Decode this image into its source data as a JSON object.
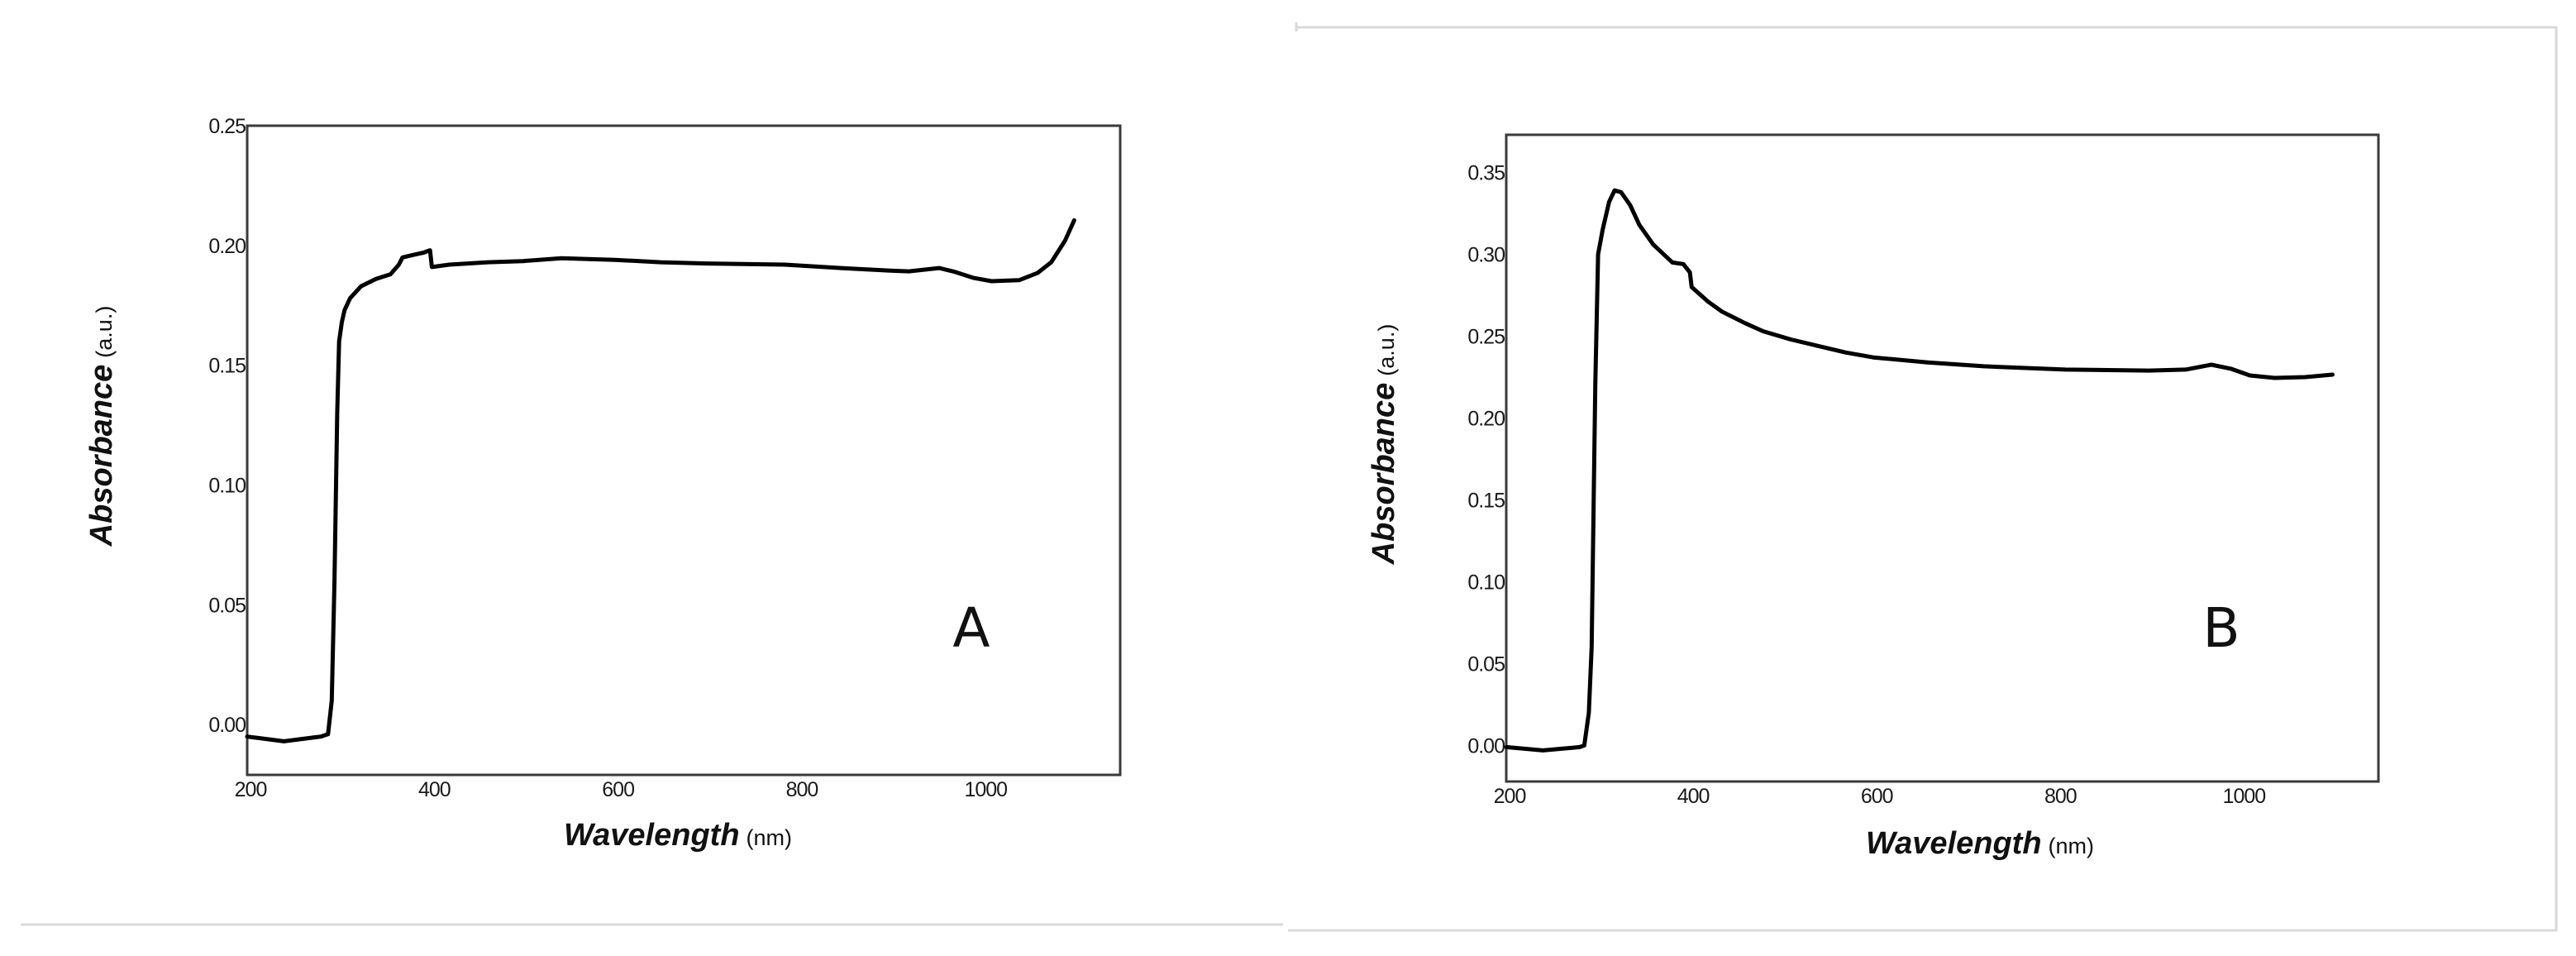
{
  "figure": {
    "panel_border_color": "#d9d9d9",
    "line_color": "#000000"
  },
  "chart_data": [
    {
      "type": "line",
      "panel_label": "A",
      "title": "",
      "xlabel": "Wavelength",
      "xlabel_unit": "(nm)",
      "ylabel": "Absorbance",
      "ylabel_unit": "(a.u.)",
      "xlim": [
        200,
        1150
      ],
      "ylim": [
        -0.021,
        0.25
      ],
      "xticks": [
        200,
        400,
        600,
        800,
        1000
      ],
      "xtick_labels": [
        "200",
        "400",
        "600",
        "800",
        "1000"
      ],
      "yticks": [
        0.0,
        0.05,
        0.1,
        0.15,
        0.2,
        0.25
      ],
      "ytick_labels": [
        "0.00",
        "0.05",
        "0.10",
        "0.15",
        "0.20",
        "0.25"
      ],
      "grid": false,
      "legend": null,
      "series": [
        {
          "name": "A",
          "x": [
            200,
            220,
            240,
            260,
            280,
            288,
            292,
            295,
            298,
            300,
            303,
            306,
            312,
            324,
            340,
            356,
            365,
            369,
            380,
            392,
            399,
            401,
            420,
            462,
            500,
            542,
            600,
            650,
            700,
            785,
            850,
            900,
            920,
            953,
            970,
            990,
            1010,
            1040,
            1060,
            1075,
            1090,
            1100
          ],
          "y": [
            -0.005,
            -0.006,
            -0.007,
            -0.006,
            -0.005,
            -0.004,
            0.01,
            0.06,
            0.13,
            0.16,
            0.168,
            0.173,
            0.178,
            0.183,
            0.186,
            0.188,
            0.192,
            0.195,
            0.196,
            0.197,
            0.198,
            0.191,
            0.192,
            0.193,
            0.1935,
            0.1947,
            0.194,
            0.193,
            0.1925,
            0.192,
            0.1905,
            0.1895,
            0.1892,
            0.1906,
            0.189,
            0.1865,
            0.1851,
            0.1855,
            0.1885,
            0.193,
            0.202,
            0.2105
          ]
        }
      ]
    },
    {
      "type": "line",
      "panel_label": "B",
      "title": "",
      "xlabel": "Wavelength",
      "xlabel_unit": "(nm)",
      "ylabel": "Absorbance",
      "ylabel_unit": "(a.u.)",
      "xlim": [
        200,
        1150
      ],
      "ylim": [
        -0.022,
        0.373
      ],
      "xticks": [
        200,
        400,
        600,
        800,
        1000
      ],
      "xtick_labels": [
        "200",
        "400",
        "600",
        "800",
        "1000"
      ],
      "yticks": [
        0.0,
        0.05,
        0.1,
        0.15,
        0.2,
        0.25,
        0.3,
        0.35
      ],
      "ytick_labels": [
        "0.00",
        "0.05",
        "0.10",
        "0.15",
        "0.20",
        "0.25",
        "0.30",
        "0.35"
      ],
      "grid": false,
      "legend": null,
      "series": [
        {
          "name": "B",
          "x": [
            200,
            220,
            240,
            260,
            280,
            285,
            290,
            293,
            295,
            297,
            300,
            305,
            312,
            318,
            325,
            335,
            345,
            360,
            381,
            393,
            400,
            402,
            420,
            435,
            460,
            480,
            510,
            540,
            570,
            600,
            659,
            720,
            809,
            900,
            940,
            968,
            990,
            1010,
            1037,
            1070,
            1100
          ],
          "y": [
            -0.001,
            -0.002,
            -0.003,
            -0.002,
            -0.001,
            0.0,
            0.02,
            0.06,
            0.14,
            0.22,
            0.3,
            0.315,
            0.332,
            0.339,
            0.338,
            0.33,
            0.318,
            0.306,
            0.295,
            0.294,
            0.289,
            0.28,
            0.271,
            0.265,
            0.258,
            0.253,
            0.248,
            0.244,
            0.24,
            0.237,
            0.234,
            0.2316,
            0.2296,
            0.229,
            0.2296,
            0.2326,
            0.23,
            0.226,
            0.2245,
            0.225,
            0.2265
          ]
        }
      ]
    }
  ]
}
